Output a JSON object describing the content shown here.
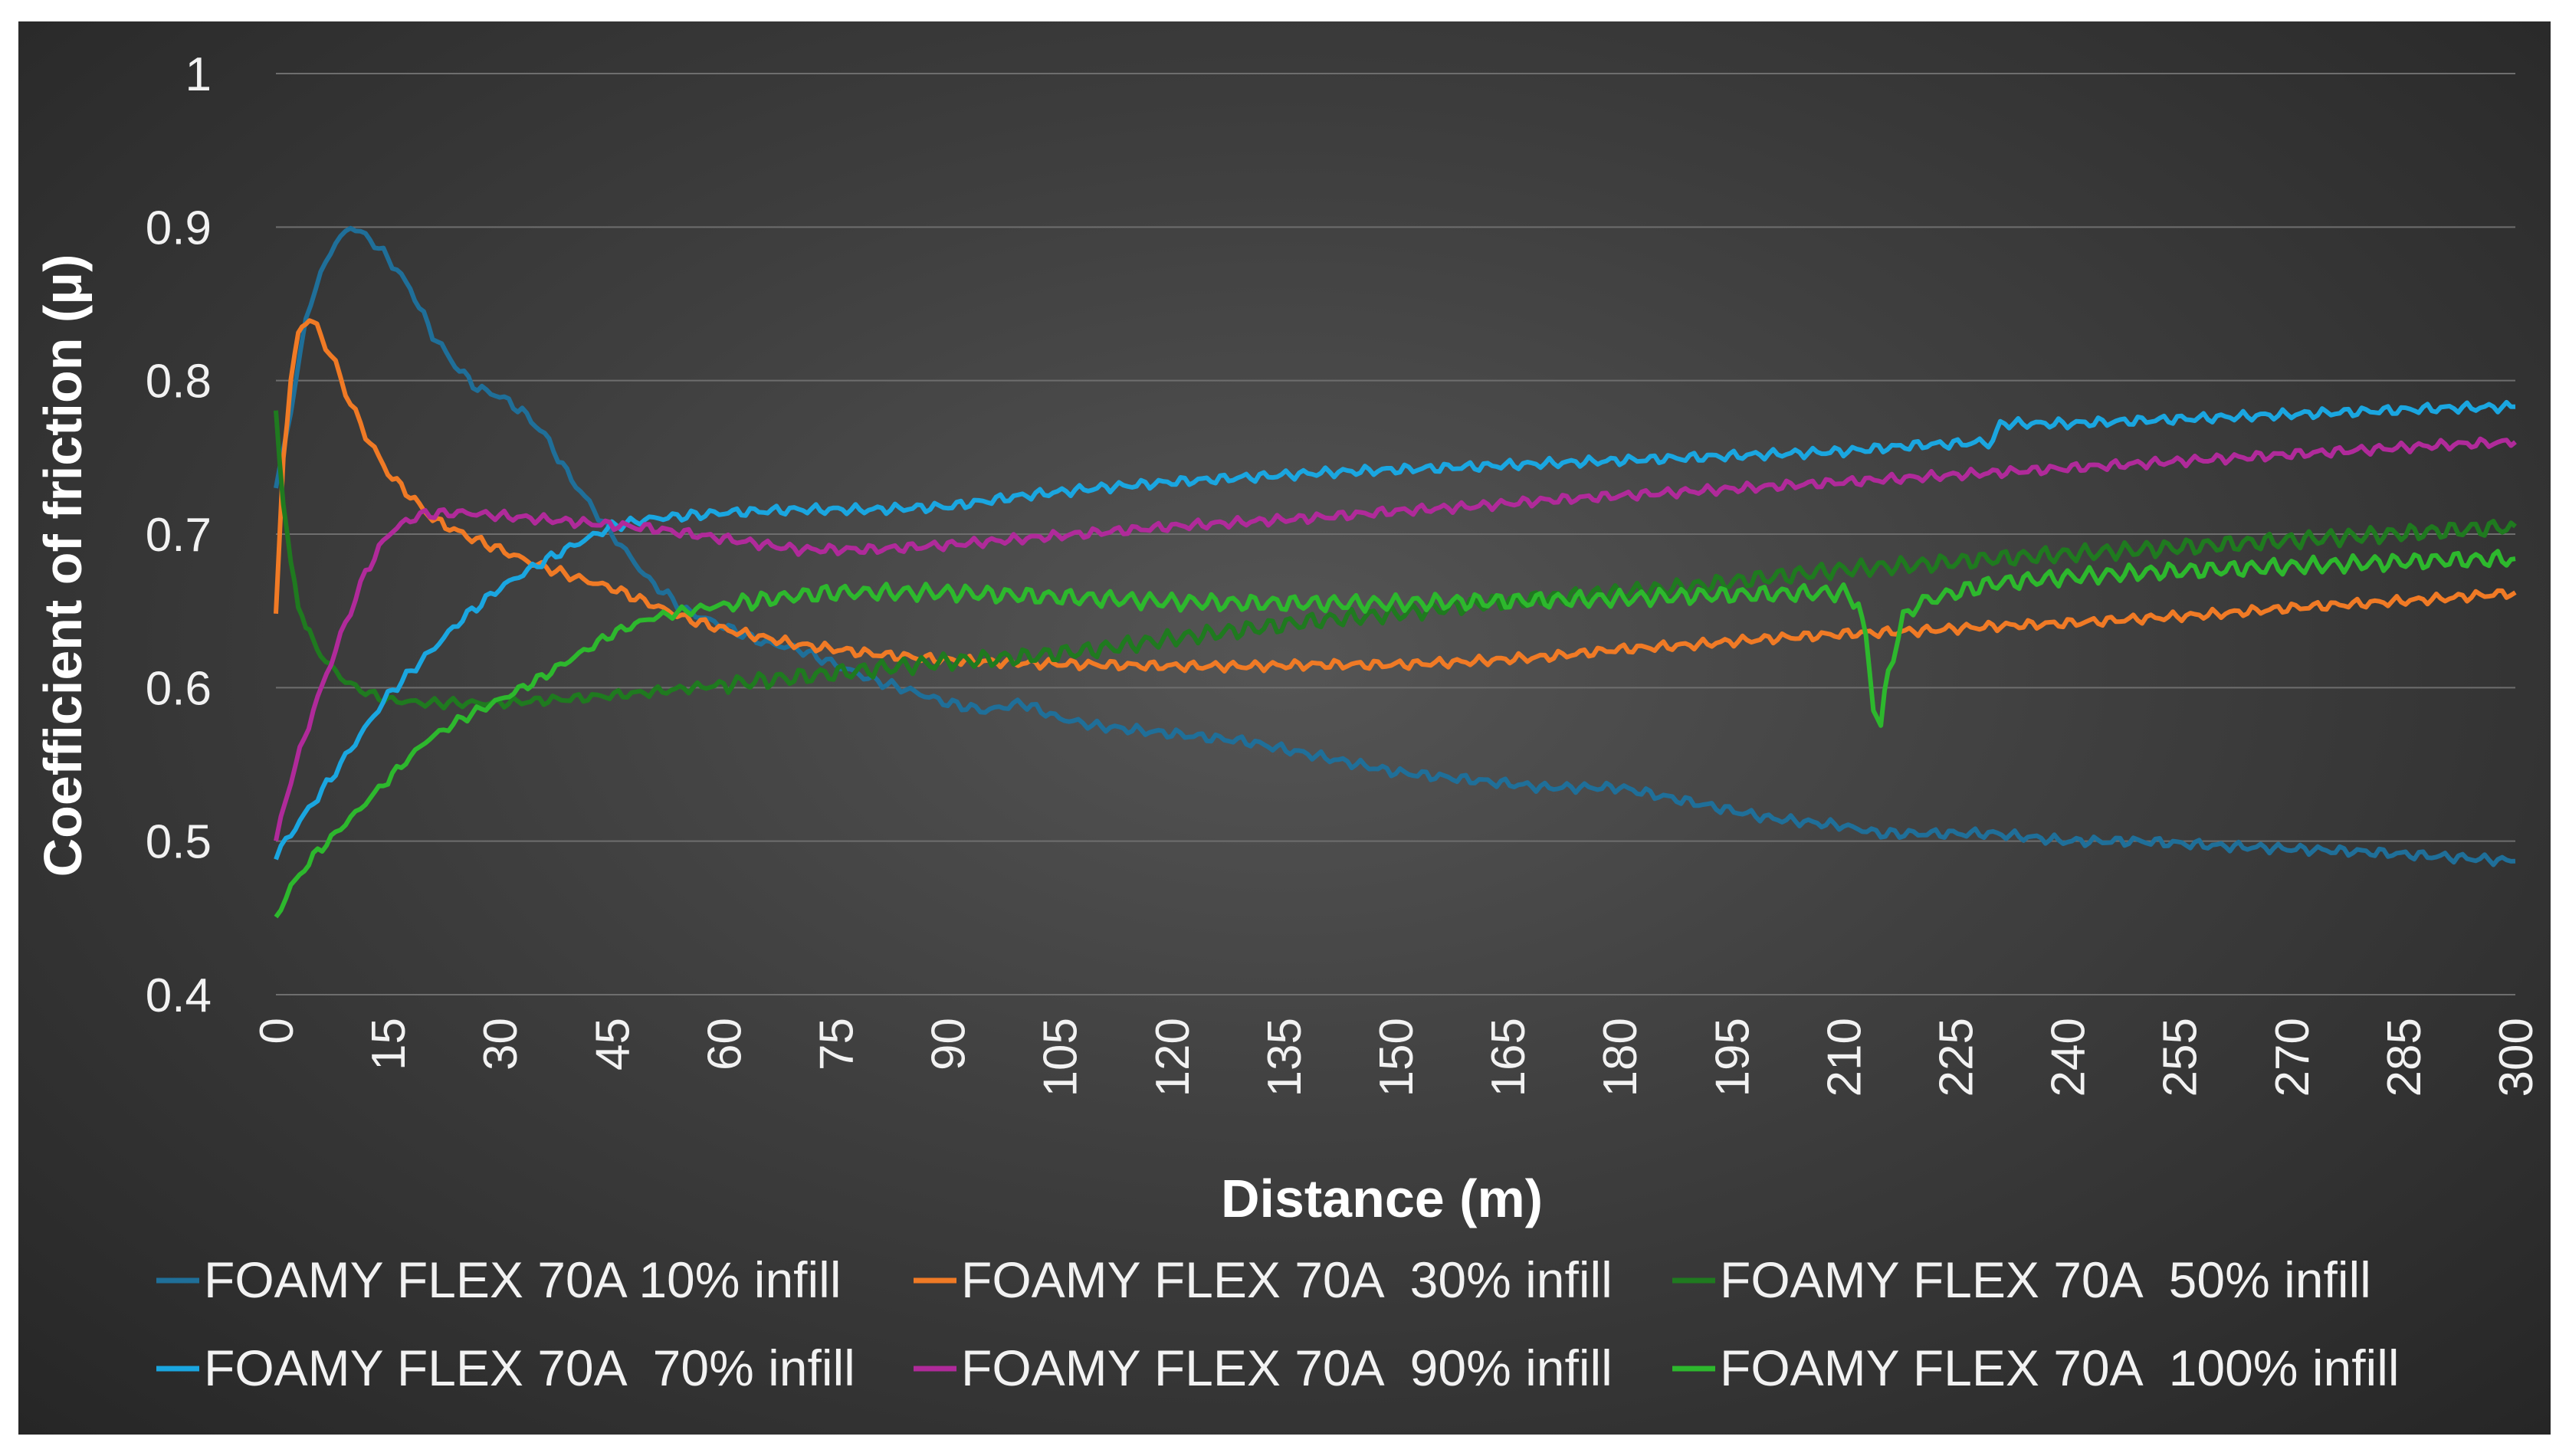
{
  "chart_data": {
    "type": "line",
    "title": "",
    "xlabel": "Distance (m)",
    "ylabel": "Coefficient of friction (μ)",
    "xlim": [
      0,
      300
    ],
    "ylim": [
      0.4,
      1.0
    ],
    "grid": true,
    "legend_position": "bottom",
    "x_ticks": [
      0,
      15,
      30,
      45,
      60,
      75,
      90,
      105,
      120,
      135,
      150,
      165,
      180,
      195,
      210,
      225,
      240,
      255,
      270,
      285,
      300
    ],
    "y_ticks": [
      0.4,
      0.5,
      0.6,
      0.7,
      0.8,
      0.9,
      1.0
    ],
    "y_tick_labels": [
      "0.4",
      "0.5",
      "0.6",
      "0.7",
      "0.8",
      "0.9",
      "1"
    ],
    "series": [
      {
        "name": "FOAMY FLEX 70A 10% infill",
        "color": "#1f6f99",
        "x": [
          0,
          2,
          4,
          6,
          8,
          10,
          12,
          15,
          18,
          21,
          24,
          27,
          30,
          33,
          36,
          39,
          42,
          45,
          50,
          55,
          60,
          65,
          70,
          75,
          80,
          85,
          90,
          95,
          100,
          105,
          110,
          120,
          130,
          140,
          150,
          160,
          170,
          180,
          190,
          200,
          210,
          215,
          220,
          230,
          240,
          250,
          260,
          270,
          280,
          290,
          300
        ],
        "y": [
          0.73,
          0.78,
          0.84,
          0.87,
          0.89,
          0.9,
          0.895,
          0.88,
          0.86,
          0.83,
          0.81,
          0.795,
          0.79,
          0.78,
          0.765,
          0.74,
          0.72,
          0.7,
          0.67,
          0.65,
          0.64,
          0.63,
          0.625,
          0.615,
          0.605,
          0.598,
          0.59,
          0.585,
          0.59,
          0.58,
          0.575,
          0.57,
          0.565,
          0.555,
          0.545,
          0.54,
          0.535,
          0.535,
          0.525,
          0.515,
          0.51,
          0.505,
          0.505,
          0.505,
          0.5,
          0.5,
          0.497,
          0.495,
          0.493,
          0.49,
          0.487
        ]
      },
      {
        "name": "FOAMY FLEX 70A  30% infill",
        "color": "#f07a25",
        "x": [
          0,
          0.5,
          1,
          2,
          3,
          4,
          5,
          6,
          8,
          10,
          12,
          15,
          18,
          21,
          25,
          30,
          35,
          40,
          45,
          50,
          55,
          60,
          70,
          80,
          90,
          100,
          110,
          120,
          130,
          140,
          150,
          160,
          170,
          180,
          190,
          200,
          210,
          220,
          230,
          240,
          250,
          260,
          270,
          280,
          290,
          300
        ],
        "y": [
          0.645,
          0.7,
          0.75,
          0.8,
          0.83,
          0.84,
          0.838,
          0.83,
          0.81,
          0.785,
          0.765,
          0.74,
          0.725,
          0.71,
          0.7,
          0.69,
          0.68,
          0.672,
          0.665,
          0.655,
          0.645,
          0.638,
          0.628,
          0.622,
          0.618,
          0.616,
          0.615,
          0.614,
          0.614,
          0.615,
          0.615,
          0.617,
          0.62,
          0.625,
          0.628,
          0.632,
          0.635,
          0.637,
          0.64,
          0.642,
          0.645,
          0.648,
          0.652,
          0.655,
          0.658,
          0.662
        ]
      },
      {
        "name": "FOAMY FLEX 70A  50% infill",
        "color": "#1f7a1f",
        "x": [
          0,
          1,
          2,
          3,
          4,
          5,
          6,
          8,
          10,
          12,
          15,
          20,
          25,
          30,
          40,
          50,
          60,
          70,
          80,
          90,
          100,
          110,
          120,
          130,
          140,
          150,
          160,
          170,
          180,
          190,
          200,
          210,
          220,
          230,
          240,
          250,
          260,
          270,
          280,
          290,
          300
        ],
        "y": [
          0.78,
          0.72,
          0.68,
          0.655,
          0.64,
          0.63,
          0.622,
          0.61,
          0.602,
          0.597,
          0.592,
          0.59,
          0.59,
          0.59,
          0.593,
          0.597,
          0.602,
          0.607,
          0.612,
          0.617,
          0.62,
          0.625,
          0.632,
          0.638,
          0.644,
          0.648,
          0.654,
          0.658,
          0.662,
          0.666,
          0.672,
          0.677,
          0.68,
          0.684,
          0.687,
          0.69,
          0.693,
          0.696,
          0.699,
          0.702,
          0.705
        ]
      },
      {
        "name": "FOAMY FLEX 70A  70% infill",
        "color": "#1aa6e0",
        "x": [
          0,
          2,
          5,
          8,
          10,
          15,
          20,
          25,
          30,
          35,
          40,
          45,
          50,
          55,
          60,
          70,
          80,
          90,
          100,
          110,
          120,
          130,
          140,
          150,
          160,
          170,
          180,
          190,
          200,
          210,
          220,
          230,
          231,
          240,
          250,
          260,
          270,
          280,
          290,
          300
        ],
        "y": [
          0.49,
          0.505,
          0.525,
          0.545,
          0.56,
          0.595,
          0.62,
          0.645,
          0.665,
          0.68,
          0.693,
          0.705,
          0.71,
          0.712,
          0.714,
          0.716,
          0.716,
          0.718,
          0.725,
          0.73,
          0.734,
          0.737,
          0.74,
          0.742,
          0.744,
          0.746,
          0.748,
          0.75,
          0.752,
          0.754,
          0.758,
          0.76,
          0.772,
          0.772,
          0.774,
          0.776,
          0.778,
          0.78,
          0.782,
          0.783
        ]
      },
      {
        "name": "FOAMY FLEX 70A  90% infill",
        "color": "#b02a9a",
        "x": [
          0,
          2,
          5,
          8,
          10,
          12,
          15,
          18,
          20,
          25,
          30,
          40,
          50,
          60,
          70,
          80,
          90,
          100,
          110,
          120,
          130,
          140,
          150,
          160,
          170,
          180,
          190,
          200,
          210,
          220,
          230,
          240,
          250,
          260,
          270,
          280,
          290,
          300
        ],
        "y": [
          0.5,
          0.54,
          0.585,
          0.625,
          0.65,
          0.675,
          0.7,
          0.71,
          0.713,
          0.714,
          0.712,
          0.708,
          0.704,
          0.697,
          0.69,
          0.69,
          0.693,
          0.697,
          0.701,
          0.705,
          0.708,
          0.711,
          0.715,
          0.718,
          0.722,
          0.725,
          0.728,
          0.731,
          0.734,
          0.737,
          0.74,
          0.743,
          0.746,
          0.749,
          0.752,
          0.755,
          0.758,
          0.76
        ]
      },
      {
        "name": "FOAMY FLEX 70A  100% infill",
        "color": "#2db82d",
        "x": [
          0,
          2,
          5,
          8,
          10,
          12,
          15,
          18,
          20,
          25,
          30,
          35,
          40,
          45,
          50,
          55,
          60,
          65,
          70,
          75,
          80,
          90,
          100,
          110,
          120,
          130,
          140,
          150,
          160,
          170,
          180,
          190,
          200,
          210,
          212,
          213,
          214,
          215,
          216,
          218,
          220,
          225,
          230,
          240,
          250,
          260,
          270,
          280,
          290,
          300
        ],
        "y": [
          0.45,
          0.47,
          0.49,
          0.505,
          0.515,
          0.525,
          0.54,
          0.555,
          0.565,
          0.58,
          0.592,
          0.605,
          0.62,
          0.635,
          0.645,
          0.65,
          0.654,
          0.657,
          0.66,
          0.662,
          0.662,
          0.662,
          0.66,
          0.658,
          0.656,
          0.655,
          0.655,
          0.655,
          0.656,
          0.657,
          0.658,
          0.66,
          0.661,
          0.662,
          0.655,
          0.63,
          0.59,
          0.575,
          0.61,
          0.645,
          0.655,
          0.662,
          0.668,
          0.672,
          0.675,
          0.677,
          0.679,
          0.681,
          0.683,
          0.684
        ]
      }
    ]
  }
}
